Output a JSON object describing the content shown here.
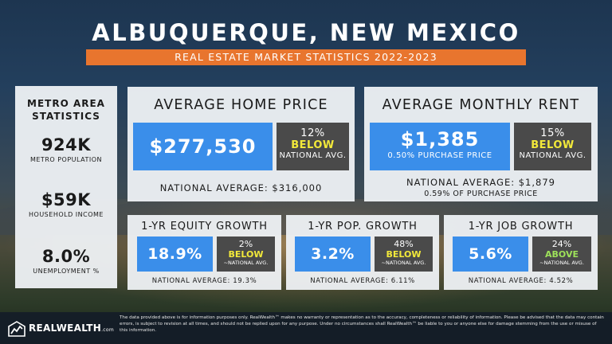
{
  "title": "ALBUQUERQUE, NEW MEXICO",
  "subtitle": "REAL ESTATE MARKET STATISTICS 2022-2023",
  "metro": {
    "heading": "METRO AREA STATISTICS",
    "population_value": "924K",
    "population_label": "METRO POPULATION",
    "income_value": "$59K",
    "income_label": "HOUSEHOLD INCOME",
    "unemployment_value": "8.0%",
    "unemployment_label": "UNEMPLOYMENT %"
  },
  "home_price": {
    "heading": "AVERAGE HOME PRICE",
    "value": "$277,530",
    "pct": "12%",
    "direction": "BELOW",
    "national_label": "NATIONAL AVG.",
    "national_average": "NATIONAL AVERAGE: $316,000"
  },
  "rent": {
    "heading": "AVERAGE MONTHLY RENT",
    "value": "$1,385",
    "sub": "0.50% PURCHASE PRICE",
    "pct": "15%",
    "direction": "BELOW",
    "national_label": "NATIONAL AVG.",
    "national_average": "NATIONAL AVERAGE: $1,879",
    "national_sub": "0.59% OF PURCHASE PRICE"
  },
  "equity": {
    "heading": "1-YR EQUITY GROWTH",
    "value": "18.9%",
    "pct": "2%",
    "direction": "BELOW",
    "national_label": "~NATIONAL AVG.",
    "national_average": "NATIONAL AVERAGE: 19.3%"
  },
  "population": {
    "heading": "1-YR POP. GROWTH",
    "value": "3.2%",
    "pct": "48%",
    "direction": "BELOW",
    "national_label": "~NATIONAL AVG.",
    "national_average": "NATIONAL AVERAGE: 6.11%"
  },
  "jobs": {
    "heading": "1-YR JOB GROWTH",
    "value": "5.6%",
    "pct": "24%",
    "direction": "ABOVE",
    "national_label": "~NATIONAL AVG.",
    "national_average": "NATIONAL AVERAGE: 4.52%"
  },
  "footer": {
    "logo": "REALWEALTH",
    "logo_suffix": ".com",
    "disclaimer": "The data provided above is for information purposes only. RealWealth™ makes no warranty or representation as to the accuracy, completeness or reliability of information. Please be advised that the data may contain errors, is subject to revision at all times, and should not be replied upon for any purpose. Under no circumstances shall RealWealth™ be liable to you or anyone else for damage stemming from the use or misuse of this information."
  },
  "colors": {
    "accent_orange": "#e8752e",
    "value_blue": "#3a8eea",
    "badge_grey": "#4a4a4a",
    "below_yellow": "#f2e93a",
    "above_green": "#9ee25a"
  }
}
